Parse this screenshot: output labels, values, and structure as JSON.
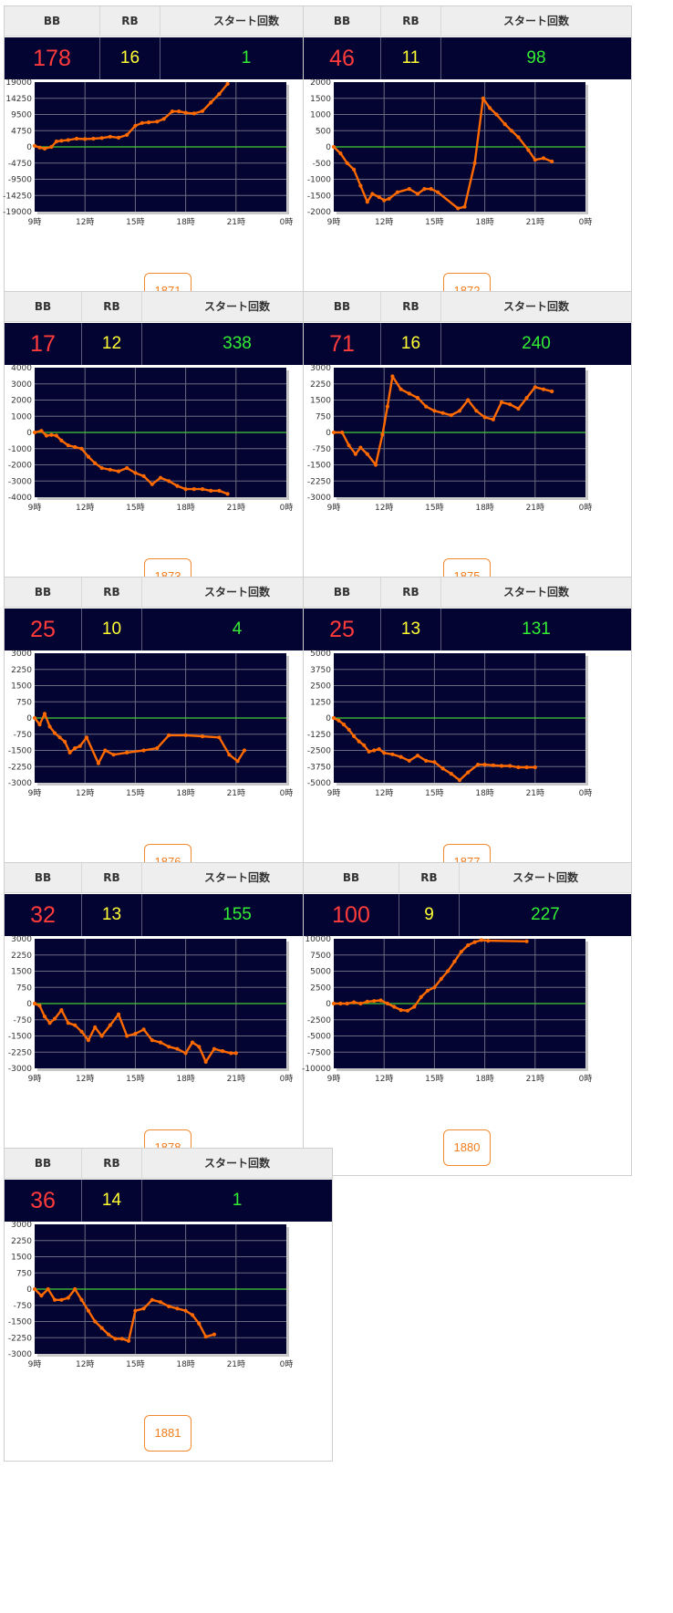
{
  "headers": {
    "bb": "BB",
    "rb": "RB",
    "start": "スタート回数"
  },
  "colors": {
    "line": "#ff6a00",
    "zero": "#44cc33",
    "plot_bg": "#040432",
    "grid": "#6a6a80"
  },
  "machines": [
    {
      "number": "1871",
      "bb": "178",
      "rb": "16",
      "start": "1",
      "chart_data": {
        "type": "line",
        "x_ticks": [
          "9時",
          "12時",
          "15時",
          "18時",
          "21時",
          "0時"
        ],
        "xlim": [
          9,
          24
        ],
        "y_ticks": [
          "19000",
          "14250",
          "9500",
          "4750",
          "0",
          "-4750",
          "-9500",
          "-14250",
          "-19000"
        ],
        "ylim": [
          -19000,
          19000
        ],
        "x": [
          9.0,
          9.3,
          9.6,
          10.0,
          10.3,
          10.6,
          11.0,
          11.5,
          12.0,
          12.5,
          13.0,
          13.5,
          14.0,
          14.5,
          15.0,
          15.4,
          15.8,
          16.3,
          16.7,
          17.2,
          17.6,
          18.0,
          18.5,
          19.0,
          19.5,
          20.0,
          20.5
        ],
        "y": [
          300,
          -200,
          -500,
          0,
          1600,
          1800,
          2000,
          2400,
          2300,
          2400,
          2600,
          3000,
          2700,
          3500,
          6200,
          7000,
          7200,
          7400,
          8200,
          10400,
          10400,
          10000,
          9800,
          10500,
          13000,
          15500,
          18500
        ]
      }
    },
    {
      "number": "1872",
      "bb": "46",
      "rb": "11",
      "start": "98",
      "chart_data": {
        "type": "line",
        "x_ticks": [
          "9時",
          "12時",
          "15時",
          "18時",
          "21時",
          "0時"
        ],
        "xlim": [
          9,
          24
        ],
        "y_ticks": [
          "2000",
          "1500",
          "1000",
          "500",
          "0",
          "-500",
          "-1000",
          "-1500",
          "-2000"
        ],
        "ylim": [
          -2000,
          2000
        ],
        "x": [
          9.0,
          9.4,
          9.8,
          10.2,
          10.6,
          11.0,
          11.3,
          11.7,
          12.0,
          12.3,
          12.8,
          13.5,
          14.0,
          14.4,
          14.8,
          15.2,
          16.4,
          16.8,
          17.4,
          17.9,
          18.3,
          18.7,
          19.2,
          19.6,
          20.0,
          20.6,
          21.0,
          21.5,
          22.0
        ],
        "y": [
          0,
          -200,
          -500,
          -700,
          -1200,
          -1700,
          -1450,
          -1550,
          -1650,
          -1600,
          -1400,
          -1300,
          -1450,
          -1300,
          -1300,
          -1400,
          -1900,
          -1850,
          -500,
          1500,
          1200,
          1000,
          700,
          500,
          300,
          -100,
          -400,
          -350,
          -450
        ]
      }
    },
    {
      "number": "1873",
      "bb": "17",
      "rb": "12",
      "start": "338",
      "chart_data": {
        "type": "line",
        "x_ticks": [
          "9時",
          "12時",
          "15時",
          "18時",
          "21時",
          "0時"
        ],
        "xlim": [
          9,
          24
        ],
        "y_ticks": [
          "4000",
          "3000",
          "2000",
          "1000",
          "0",
          "-1000",
          "-2000",
          "-3000",
          "-4000"
        ],
        "ylim": [
          -4000,
          4000
        ],
        "x": [
          9.0,
          9.4,
          9.7,
          10.0,
          10.3,
          10.6,
          11.0,
          11.4,
          11.8,
          12.2,
          12.6,
          13.0,
          13.5,
          14.0,
          14.5,
          15.0,
          15.5,
          16.0,
          16.5,
          17.0,
          17.5,
          18.0,
          18.5,
          19.0,
          19.5,
          20.0,
          20.5
        ],
        "y": [
          0,
          100,
          -200,
          -150,
          -200,
          -500,
          -800,
          -900,
          -1000,
          -1500,
          -1900,
          -2200,
          -2300,
          -2400,
          -2200,
          -2500,
          -2700,
          -3200,
          -2800,
          -3000,
          -3300,
          -3500,
          -3500,
          -3500,
          -3600,
          -3600,
          -3800
        ]
      }
    },
    {
      "number": "1875",
      "bb": "71",
      "rb": "16",
      "start": "240",
      "chart_data": {
        "type": "line",
        "x_ticks": [
          "9時",
          "12時",
          "15時",
          "18時",
          "21時",
          "0時"
        ],
        "xlim": [
          9,
          24
        ],
        "y_ticks": [
          "3000",
          "2250",
          "1500",
          "750",
          "0",
          "-750",
          "-1500",
          "-2250",
          "-3000"
        ],
        "ylim": [
          -3000,
          3000
        ],
        "x": [
          9.0,
          9.5,
          9.9,
          10.3,
          10.6,
          11.0,
          11.5,
          11.9,
          12.2,
          12.5,
          13.0,
          13.5,
          14.0,
          14.5,
          15.0,
          15.5,
          16.0,
          16.5,
          17.0,
          17.5,
          18.0,
          18.5,
          19.0,
          19.5,
          20.0,
          20.5,
          21.0,
          21.5,
          22.0
        ],
        "y": [
          0,
          0,
          -600,
          -1000,
          -700,
          -1000,
          -1500,
          -100,
          1200,
          2600,
          2000,
          1800,
          1600,
          1200,
          1000,
          900,
          800,
          1000,
          1500,
          1000,
          700,
          600,
          1400,
          1300,
          1100,
          1600,
          2100,
          2000,
          1900
        ]
      }
    },
    {
      "number": "1876",
      "bb": "25",
      "rb": "10",
      "start": "4",
      "chart_data": {
        "type": "line",
        "x_ticks": [
          "9時",
          "12時",
          "15時",
          "18時",
          "21時",
          "0時"
        ],
        "xlim": [
          9,
          24
        ],
        "y_ticks": [
          "3000",
          "2250",
          "1500",
          "750",
          "0",
          "-750",
          "-1500",
          "-2250",
          "-3000"
        ],
        "ylim": [
          -3000,
          3000
        ],
        "x": [
          9.0,
          9.3,
          9.6,
          9.9,
          10.2,
          10.5,
          10.8,
          11.1,
          11.4,
          11.7,
          12.1,
          12.8,
          13.2,
          13.7,
          14.5,
          15.5,
          16.3,
          17.0,
          18.0,
          19.0,
          20.0,
          20.6,
          21.1,
          21.5
        ],
        "y": [
          0,
          -300,
          200,
          -400,
          -700,
          -900,
          -1100,
          -1600,
          -1400,
          -1300,
          -900,
          -2100,
          -1500,
          -1700,
          -1600,
          -1500,
          -1400,
          -800,
          -800,
          -850,
          -900,
          -1700,
          -2000,
          -1500
        ]
      }
    },
    {
      "number": "1877",
      "bb": "25",
      "rb": "13",
      "start": "131",
      "chart_data": {
        "type": "line",
        "x_ticks": [
          "9時",
          "12時",
          "15時",
          "18時",
          "21時",
          "0時"
        ],
        "xlim": [
          9,
          24
        ],
        "y_ticks": [
          "5000",
          "3750",
          "2500",
          "1250",
          "0",
          "-1250",
          "-2500",
          "-3750",
          "-5000"
        ],
        "ylim": [
          -5000,
          5000
        ],
        "x": [
          9.0,
          9.3,
          9.6,
          9.9,
          10.2,
          10.5,
          10.8,
          11.1,
          11.4,
          11.7,
          12.0,
          12.5,
          13.0,
          13.5,
          14.0,
          14.5,
          15.0,
          15.5,
          16.0,
          16.5,
          17.0,
          17.6,
          18.0,
          18.5,
          19.0,
          19.5,
          20.0,
          20.5,
          21.0
        ],
        "y": [
          0,
          -200,
          -500,
          -900,
          -1400,
          -1800,
          -2100,
          -2600,
          -2500,
          -2400,
          -2700,
          -2800,
          -3000,
          -3300,
          -2900,
          -3300,
          -3400,
          -3900,
          -4300,
          -4800,
          -4200,
          -3600,
          -3600,
          -3650,
          -3700,
          -3700,
          -3800,
          -3800,
          -3800
        ]
      }
    },
    {
      "number": "1878",
      "bb": "32",
      "rb": "13",
      "start": "155",
      "chart_data": {
        "type": "line",
        "x_ticks": [
          "9時",
          "12時",
          "15時",
          "18時",
          "21時",
          "0時"
        ],
        "xlim": [
          9,
          24
        ],
        "y_ticks": [
          "3000",
          "2250",
          "1500",
          "750",
          "0",
          "-750",
          "-1500",
          "-2250",
          "-3000"
        ],
        "ylim": [
          -3000,
          3000
        ],
        "x": [
          9.0,
          9.3,
          9.6,
          9.9,
          10.2,
          10.6,
          11.0,
          11.4,
          11.8,
          12.2,
          12.6,
          13.0,
          13.5,
          14.0,
          14.5,
          15.0,
          15.5,
          16.0,
          16.5,
          17.0,
          17.5,
          18.0,
          18.4,
          18.8,
          19.2,
          19.7,
          20.2,
          20.7,
          21.0
        ],
        "y": [
          0,
          -100,
          -600,
          -900,
          -700,
          -300,
          -900,
          -1000,
          -1300,
          -1700,
          -1100,
          -1500,
          -1000,
          -500,
          -1500,
          -1400,
          -1200,
          -1700,
          -1800,
          -2000,
          -2100,
          -2300,
          -1800,
          -2000,
          -2700,
          -2100,
          -2200,
          -2300,
          -2300
        ]
      }
    },
    {
      "number": "1880",
      "bb": "100",
      "rb": "9",
      "start": "227",
      "chart_data": {
        "type": "line",
        "x_ticks": [
          "9時",
          "12時",
          "15時",
          "18時",
          "21時",
          "0時"
        ],
        "xlim": [
          9,
          24
        ],
        "y_ticks": [
          "10000",
          "7500",
          "5000",
          "2500",
          "0",
          "-2500",
          "-5000",
          "-7500",
          "-10000"
        ],
        "ylim": [
          -10000,
          10000
        ],
        "x": [
          9.0,
          9.4,
          9.8,
          10.2,
          10.6,
          11.0,
          11.4,
          11.8,
          12.2,
          12.6,
          13.0,
          13.4,
          13.8,
          14.2,
          14.6,
          15.0,
          15.4,
          15.8,
          16.2,
          16.6,
          17.0,
          17.4,
          17.8,
          18.2,
          20.5
        ],
        "y": [
          0,
          0,
          0,
          200,
          0,
          300,
          400,
          500,
          0,
          -500,
          -1000,
          -1100,
          -500,
          1000,
          2000,
          2500,
          3800,
          5000,
          6500,
          8000,
          9000,
          9500,
          9800,
          9700,
          9600
        ]
      }
    },
    {
      "number": "1881",
      "bb": "36",
      "rb": "14",
      "start": "1",
      "chart_data": {
        "type": "line",
        "x_ticks": [
          "9時",
          "12時",
          "15時",
          "18時",
          "21時",
          "0時"
        ],
        "xlim": [
          9,
          24
        ],
        "y_ticks": [
          "3000",
          "2250",
          "1500",
          "750",
          "0",
          "-750",
          "-1500",
          "-2250",
          "-3000"
        ],
        "ylim": [
          -3000,
          3000
        ],
        "x": [
          9.0,
          9.4,
          9.8,
          10.2,
          10.6,
          11.0,
          11.4,
          11.8,
          12.2,
          12.6,
          13.0,
          13.4,
          13.8,
          14.2,
          14.6,
          15.0,
          15.5,
          16.0,
          16.5,
          17.0,
          17.5,
          18.0,
          18.4,
          18.8,
          19.2,
          19.7
        ],
        "y": [
          0,
          -300,
          0,
          -500,
          -500,
          -400,
          0,
          -500,
          -1000,
          -1500,
          -1800,
          -2100,
          -2300,
          -2300,
          -2400,
          -1000,
          -900,
          -500,
          -600,
          -800,
          -900,
          -1000,
          -1200,
          -1600,
          -2200,
          -2100
        ]
      }
    }
  ]
}
